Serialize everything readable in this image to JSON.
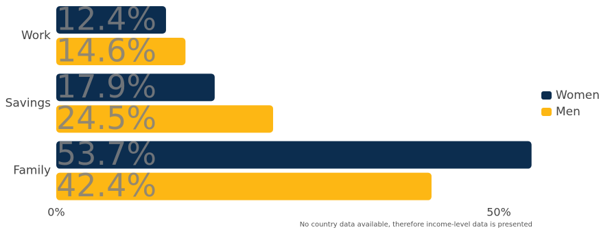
{
  "chart_data": {
    "type": "hbar",
    "categories": [
      "Work",
      "Savings",
      "Family"
    ],
    "series": [
      {
        "name": "Women",
        "color": "#0c2d4f",
        "values": [
          12.4,
          17.9,
          53.7
        ],
        "value_labels": [
          "12.4%",
          "17.9%",
          "53.7%"
        ]
      },
      {
        "name": "Men",
        "color": "#fdb714",
        "values": [
          14.6,
          24.5,
          42.4
        ],
        "value_labels": [
          "14.6%",
          "24.5%",
          "42.4%"
        ]
      }
    ],
    "xlim": [
      0,
      55
    ],
    "xticks": [
      {
        "value": 0,
        "label": "0%"
      },
      {
        "value": 50,
        "label": "50%"
      }
    ],
    "legend": "right",
    "footnote": "No country data available, therefore income-level data is presented"
  }
}
